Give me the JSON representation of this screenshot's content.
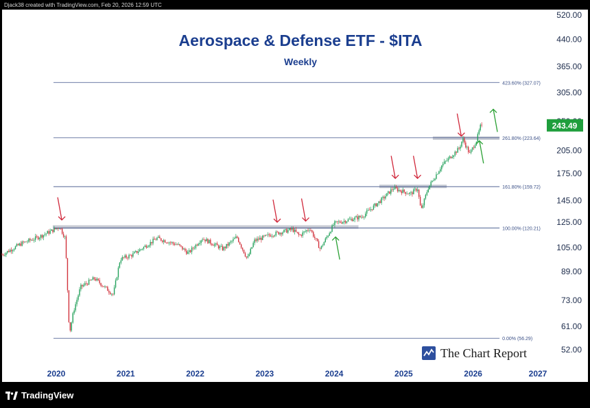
{
  "credit": "Djack38 created with TradingView.com, Feb 20, 2026 12:59 UTC",
  "brand": "TradingView",
  "watermark": "The Chart Report",
  "colors": {
    "up": "#22a05a",
    "down": "#d1323c",
    "title": "#1b3e8f",
    "fib_line": "#3a4f86",
    "price_badge": "#1f9e3c",
    "arrow_down": "#d0273a",
    "arrow_up": "#2aa033",
    "resistance_band": "#c5c9d2"
  },
  "chart_data": {
    "type": "candlestick",
    "title": "Aerospace & Defense ETF - $ITA",
    "subtitle": "Weekly",
    "y_scale": "log",
    "ylim": [
      48,
      540
    ],
    "xlim": [
      2019.22,
      2027.06
    ],
    "y_ticks": [
      "520.00",
      "440.00",
      "365.00",
      "305.00",
      "250.00",
      "205.00",
      "175.00",
      "145.00",
      "125.00",
      "105.00",
      "89.00",
      "73.00",
      "61.00",
      "52.00"
    ],
    "x_ticks": [
      "2020",
      "2021",
      "2022",
      "2023",
      "2024",
      "2025",
      "2026",
      "2027"
    ],
    "last_price": "243.49",
    "fib_levels": [
      {
        "label": "0.00% (56.29)",
        "value": 56.29
      },
      {
        "label": "100.00% (120.21)",
        "value": 120.21
      },
      {
        "label": "161.80% (159.72)",
        "value": 159.72
      },
      {
        "label": "261.80% (223.64)",
        "value": 223.64
      },
      {
        "label": "423.60% (327.07)",
        "value": 327.07
      }
    ],
    "resistance_zones": [
      {
        "x_start": 2019.95,
        "x_end": 2024.35,
        "value": 121
      },
      {
        "x_start": 2024.65,
        "x_end": 2025.62,
        "value": 160
      },
      {
        "x_start": 2025.42,
        "x_end": 2026.38,
        "value": 223
      }
    ],
    "anchors": [
      [
        2019.22,
        100
      ],
      [
        2019.5,
        108
      ],
      [
        2019.75,
        113
      ],
      [
        2020.05,
        121
      ],
      [
        2020.13,
        112
      ],
      [
        2020.19,
        58
      ],
      [
        2020.25,
        68
      ],
      [
        2020.35,
        80
      ],
      [
        2020.55,
        85
      ],
      [
        2020.82,
        76
      ],
      [
        2020.92,
        97
      ],
      [
        2021.1,
        100
      ],
      [
        2021.45,
        112
      ],
      [
        2021.75,
        107
      ],
      [
        2021.9,
        101
      ],
      [
        2022.1,
        112
      ],
      [
        2022.4,
        104
      ],
      [
        2022.6,
        113
      ],
      [
        2022.75,
        97
      ],
      [
        2022.85,
        110
      ],
      [
        2023.1,
        115
      ],
      [
        2023.4,
        119
      ],
      [
        2023.5,
        114
      ],
      [
        2023.65,
        120
      ],
      [
        2023.8,
        104
      ],
      [
        2024.0,
        124
      ],
      [
        2024.4,
        130
      ],
      [
        2024.7,
        147
      ],
      [
        2024.85,
        158
      ],
      [
        2025.1,
        152
      ],
      [
        2025.2,
        158
      ],
      [
        2025.25,
        135
      ],
      [
        2025.35,
        158
      ],
      [
        2025.55,
        185
      ],
      [
        2025.8,
        208
      ],
      [
        2025.85,
        222
      ],
      [
        2025.95,
        200
      ],
      [
        2026.05,
        220
      ],
      [
        2026.12,
        248
      ],
      [
        2026.13,
        243.49
      ]
    ],
    "arrows_down": [
      [
        2020.05,
        127
      ],
      [
        2023.15,
        125
      ],
      [
        2023.56,
        126
      ],
      [
        2024.85,
        169
      ],
      [
        2025.17,
        169
      ],
      [
        2025.8,
        226
      ]
    ],
    "arrows_up": [
      [
        2024.05,
        113
      ],
      [
        2026.12,
        219
      ],
      [
        2026.32,
        272
      ]
    ]
  }
}
